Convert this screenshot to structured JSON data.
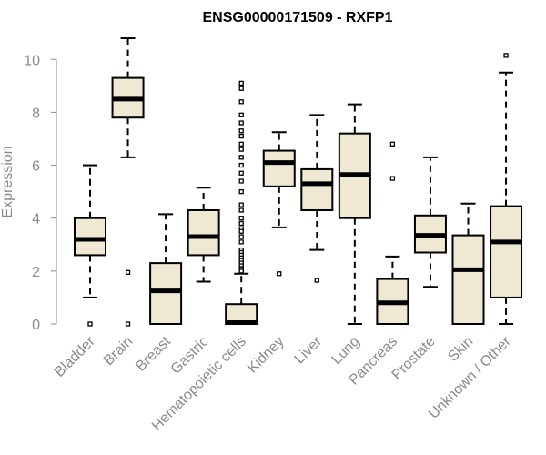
{
  "chart_data": {
    "type": "boxplot",
    "title": "ENSG00000171509 - RXFP1",
    "xlabel": "",
    "ylabel": "Expression",
    "ylim": [
      0,
      10.8
    ],
    "yticks": [
      0,
      2,
      4,
      6,
      8,
      10
    ],
    "categories": [
      "Bladder",
      "Brain",
      "Breast",
      "Gastric",
      "Hematopoietic cells",
      "Kidney",
      "Liver",
      "Lung",
      "Pancreas",
      "Prostate",
      "Skin",
      "Unknown / Other"
    ],
    "box_fill": "#efe8d2",
    "box_stroke": "#000000",
    "boxes": [
      {
        "whisker_low": 1.0,
        "q1": 2.6,
        "median": 3.2,
        "q3": 4.0,
        "whisker_high": 6.0,
        "outliers": [
          0.0
        ]
      },
      {
        "whisker_low": 6.3,
        "q1": 7.8,
        "median": 8.5,
        "q3": 9.3,
        "whisker_high": 10.8,
        "outliers": [
          1.95,
          0.0
        ]
      },
      {
        "whisker_low": 0.0,
        "q1": 0.0,
        "median": 1.25,
        "q3": 2.3,
        "whisker_high": 4.15,
        "outliers": []
      },
      {
        "whisker_low": 1.6,
        "q1": 2.6,
        "median": 3.3,
        "q3": 4.3,
        "whisker_high": 5.15,
        "outliers": []
      },
      {
        "whisker_low": 0.0,
        "q1": 0.0,
        "median": 0.05,
        "q3": 0.75,
        "whisker_high": 1.9,
        "outliers": [
          9.1,
          8.9,
          8.4,
          7.9,
          7.6,
          7.3,
          7.1,
          6.8,
          6.6,
          6.3,
          6.0,
          5.7,
          5.4,
          5.0,
          4.5,
          4.3,
          4.0,
          3.8,
          3.6,
          3.5,
          3.3,
          3.1,
          2.8,
          2.7,
          2.6,
          2.5,
          2.4,
          2.3,
          2.2,
          2.1,
          2.05,
          2.0
        ]
      },
      {
        "whisker_low": 3.65,
        "q1": 5.2,
        "median": 6.1,
        "q3": 6.55,
        "whisker_high": 7.25,
        "outliers": [
          1.9
        ]
      },
      {
        "whisker_low": 2.8,
        "q1": 4.3,
        "median": 5.3,
        "q3": 5.85,
        "whisker_high": 7.9,
        "outliers": [
          1.65
        ]
      },
      {
        "whisker_low": 0.0,
        "q1": 4.0,
        "median": 5.65,
        "q3": 7.2,
        "whisker_high": 8.3,
        "outliers": []
      },
      {
        "whisker_low": 0.0,
        "q1": 0.0,
        "median": 0.8,
        "q3": 1.7,
        "whisker_high": 2.55,
        "outliers": [
          6.8,
          5.5
        ]
      },
      {
        "whisker_low": 1.4,
        "q1": 2.7,
        "median": 3.35,
        "q3": 4.1,
        "whisker_high": 6.3,
        "outliers": []
      },
      {
        "whisker_low": 0.0,
        "q1": 0.0,
        "median": 2.05,
        "q3": 3.35,
        "whisker_high": 4.55,
        "outliers": []
      },
      {
        "whisker_low": 0.0,
        "q1": 1.0,
        "median": 3.1,
        "q3": 4.45,
        "whisker_high": 9.5,
        "outliers": [
          10.15
        ]
      }
    ]
  }
}
